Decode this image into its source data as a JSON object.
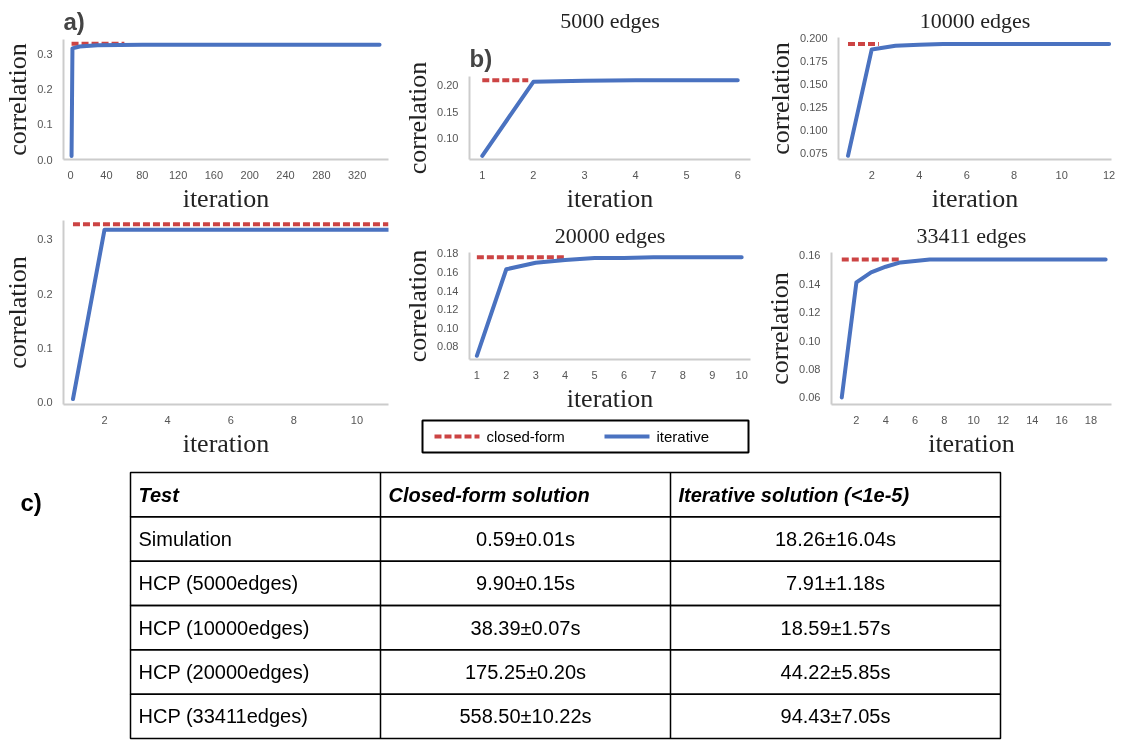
{
  "chart_data": [
    {
      "type": "line",
      "annotations": [
        "a)"
      ],
      "xlabel": "iteration",
      "ylabel": "correlation",
      "xlim": [
        -8,
        355
      ],
      "ylim": [
        0,
        0.34
      ],
      "xticks": [
        0,
        40,
        80,
        120,
        160,
        200,
        240,
        280,
        320
      ],
      "yticks": [
        {
          "value": 0,
          "label": "0.0"
        },
        0.1,
        0.2,
        0.3
      ],
      "grid": false,
      "series": [
        {
          "type": "line",
          "color": "#cc4444",
          "line_style": "dashed",
          "x": [
            1,
            60
          ],
          "values": [
            0.328,
            0.328
          ]
        },
        {
          "type": "line",
          "color": "#4a72c0",
          "line_style": "solid",
          "x": [
            1,
            2,
            10,
            30,
            80,
            345
          ],
          "values": [
            0.01,
            0.315,
            0.32,
            0.324,
            0.325,
            0.325
          ]
        }
      ]
    },
    {
      "type": "line",
      "xlabel": "iteration",
      "ylabel": "correlation",
      "xlim": [
        0.7,
        11
      ],
      "ylim": [
        -0.005,
        0.335
      ],
      "xticks": [
        2,
        4,
        6,
        8,
        10
      ],
      "yticks": [
        {
          "value": 0,
          "label": "0.0"
        },
        0.1,
        0.2,
        0.3
      ],
      "grid": false,
      "series": [
        {
          "type": "line",
          "color": "#cc4444",
          "line_style": "dashed",
          "x": [
            1,
            11
          ],
          "values": [
            0.328,
            0.328
          ]
        },
        {
          "type": "line",
          "color": "#4a72c0",
          "line_style": "solid",
          "x": [
            1,
            2,
            3,
            4,
            5,
            6,
            7,
            8,
            9,
            10,
            11
          ],
          "values": [
            0.005,
            0.318,
            0.318,
            0.318,
            0.318,
            0.318,
            0.318,
            0.318,
            0.318,
            0.318,
            0.318
          ]
        }
      ]
    },
    {
      "type": "line",
      "title": "5000 edges",
      "annotations": [
        "b)"
      ],
      "xlabel": "iteration",
      "ylabel": "correlation",
      "xlim": [
        0.75,
        6.25
      ],
      "ylim": [
        0.06,
        0.217
      ],
      "xticks": [
        1,
        2,
        3,
        4,
        5,
        6
      ],
      "yticks": [
        {
          "value": 0.1,
          "label": "0.10"
        },
        0.15,
        {
          "value": 0.2,
          "label": "0.20"
        }
      ],
      "grid": false,
      "series": [
        {
          "type": "line",
          "color": "#cc4444",
          "line_style": "dashed",
          "x": [
            1,
            1.9
          ],
          "values": [
            0.21,
            0.21
          ]
        },
        {
          "type": "line",
          "color": "#4a72c0",
          "line_style": "solid",
          "x": [
            1,
            2,
            3,
            4,
            5,
            6
          ],
          "values": [
            0.067,
            0.207,
            0.209,
            0.21,
            0.21,
            0.21
          ]
        }
      ]
    },
    {
      "type": "line",
      "title": "10000 edges",
      "xlabel": "iteration",
      "ylabel": "correlation",
      "xlim": [
        0.6,
        12.1
      ],
      "ylim": [
        0.068,
        0.201
      ],
      "xticks": [
        2,
        4,
        6,
        8,
        10,
        12
      ],
      "yticks": [
        0.075,
        {
          "value": 0.1,
          "label": "0.100"
        },
        0.125,
        {
          "value": 0.15,
          "label": "0.150"
        },
        0.175,
        {
          "value": 0.2,
          "label": "0.200"
        }
      ],
      "grid": false,
      "series": [
        {
          "type": "line",
          "color": "#cc4444",
          "line_style": "dashed",
          "x": [
            1,
            2.3
          ],
          "values": [
            0.194,
            0.194
          ]
        },
        {
          "type": "line",
          "color": "#4a72c0",
          "line_style": "solid",
          "x": [
            1,
            2,
            3,
            4,
            5,
            6,
            7,
            8,
            9,
            10,
            11,
            12
          ],
          "values": [
            0.072,
            0.188,
            0.192,
            0.193,
            0.194,
            0.194,
            0.194,
            0.194,
            0.194,
            0.194,
            0.194,
            0.194
          ]
        }
      ]
    },
    {
      "type": "line",
      "title": "20000 edges",
      "xlabel": "iteration",
      "ylabel": "correlation",
      "xlim": [
        0.75,
        10.3
      ],
      "ylim": [
        0.066,
        0.181
      ],
      "xticks": [
        1,
        2,
        3,
        4,
        5,
        6,
        7,
        8,
        9,
        10
      ],
      "yticks": [
        0.08,
        {
          "value": 0.1,
          "label": "0.10"
        },
        0.12,
        0.14,
        0.16,
        0.18
      ],
      "grid": false,
      "legend": "bottom",
      "series": [
        {
          "type": "line",
          "name": "closed-form",
          "color": "#cc4444",
          "line_style": "dashed",
          "x": [
            1,
            4
          ],
          "values": [
            0.176,
            0.176
          ]
        },
        {
          "type": "line",
          "name": "iterative",
          "color": "#4a72c0",
          "line_style": "solid",
          "x": [
            1,
            2,
            3,
            4,
            5,
            6,
            7,
            8,
            9,
            10
          ],
          "values": [
            0.07,
            0.163,
            0.17,
            0.173,
            0.175,
            0.175,
            0.176,
            0.176,
            0.176,
            0.176
          ]
        }
      ]
    },
    {
      "type": "line",
      "title": "33411 edges",
      "xlabel": "iteration",
      "ylabel": "correlation",
      "xlim": [
        0.3,
        19.4
      ],
      "ylim": [
        0.055,
        0.162
      ],
      "xticks": [
        2,
        4,
        6,
        8,
        10,
        12,
        14,
        16,
        18
      ],
      "yticks": [
        0.06,
        0.08,
        {
          "value": 0.1,
          "label": "0.10"
        },
        0.12,
        0.14,
        0.16
      ],
      "grid": false,
      "series": [
        {
          "type": "line",
          "color": "#cc4444",
          "line_style": "dashed",
          "x": [
            1,
            5
          ],
          "values": [
            0.157,
            0.157
          ]
        },
        {
          "type": "line",
          "color": "#4a72c0",
          "line_style": "solid",
          "x": [
            1,
            2,
            3,
            4,
            5,
            6,
            7,
            8,
            10,
            12,
            14,
            16,
            18,
            19
          ],
          "values": [
            0.06,
            0.141,
            0.148,
            0.152,
            0.155,
            0.156,
            0.157,
            0.157,
            0.157,
            0.157,
            0.157,
            0.157,
            0.157,
            0.157
          ]
        }
      ]
    },
    {
      "type": "other",
      "annotations": [
        "c)"
      ],
      "categories": [
        "Test",
        "Closed-form solution",
        "Iterative solution (<1e-5)"
      ],
      "y_categories": [
        "Simulation",
        "HCP (5000edges)",
        "HCP (10000edges)",
        "HCP (20000edges)",
        "HCP (33411edges)"
      ],
      "cell_labels": [
        [
          "0.59±0.01s",
          "18.26±16.04s"
        ],
        [
          "9.90±0.15s",
          "7.91±1.18s"
        ],
        [
          "38.39±0.07s",
          "18.59±1.57s"
        ],
        [
          "175.25±0.20s",
          "44.22±5.85s"
        ],
        [
          "558.50±10.22s",
          "94.43±7.05s"
        ]
      ]
    }
  ]
}
